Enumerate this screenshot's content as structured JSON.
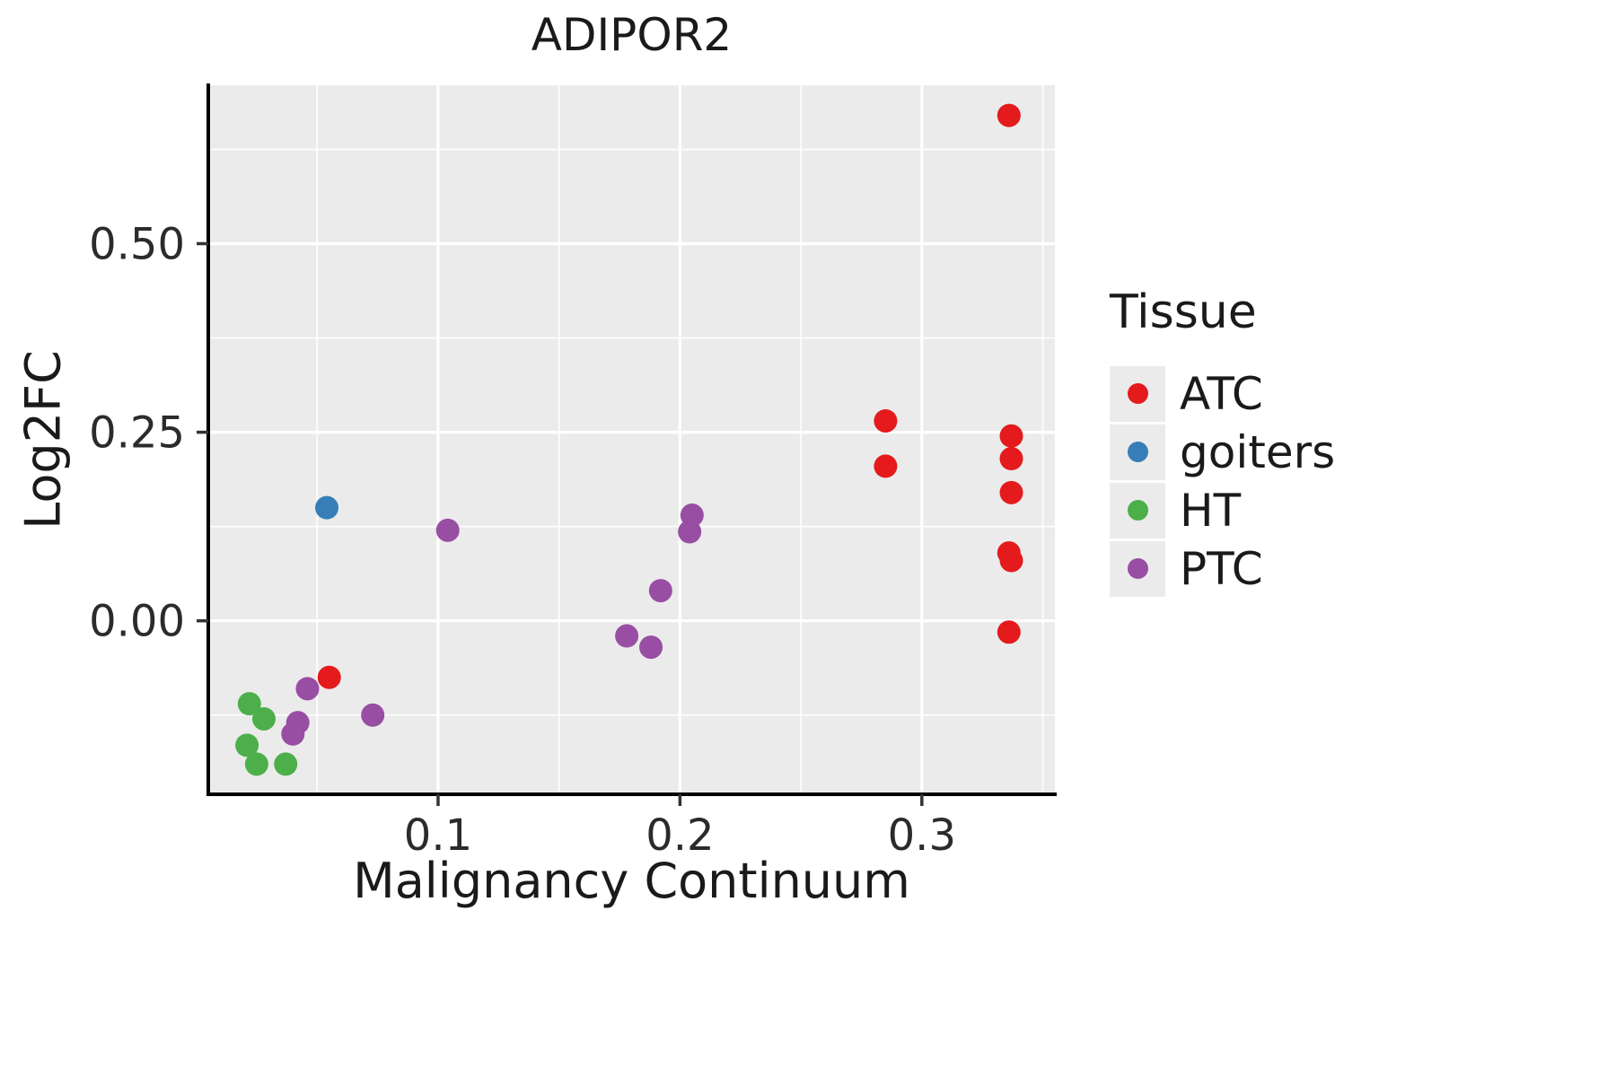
{
  "title": "ADIPOR2",
  "xlabel": "Malignancy Continuum",
  "ylabel": "Log2FC",
  "legend": {
    "title": "Tissue",
    "items": [
      {
        "label": "ATC",
        "color": "#e41a1c"
      },
      {
        "label": "goiters",
        "color": "#377eb8"
      },
      {
        "label": "HT",
        "color": "#4daf4a"
      },
      {
        "label": "PTC",
        "color": "#984ea3"
      }
    ]
  },
  "colors": {
    "panel_background": "#ebebeb",
    "grid": "#ffffff",
    "axis_line": "#000000",
    "tick_text": "#2b2b2b"
  },
  "chart_data": {
    "type": "scatter",
    "title": "ADIPOR2",
    "xlabel": "Malignancy Continuum",
    "ylabel": "Log2FC",
    "xlim": [
      0.005,
      0.355
    ],
    "ylim": [
      -0.23,
      0.71
    ],
    "x_ticks": [
      0.1,
      0.2,
      0.3
    ],
    "x_tick_labels": [
      "0.1",
      "0.2",
      "0.3"
    ],
    "y_ticks": [
      0.0,
      0.25,
      0.5
    ],
    "y_tick_labels": [
      "0.00",
      "0.25",
      "0.50"
    ],
    "x_minor": [
      0.05,
      0.15,
      0.25,
      0.35
    ],
    "y_minor": [
      -0.125,
      0.125,
      0.375,
      0.625
    ],
    "grid": true,
    "legend_position": "right",
    "series": [
      {
        "name": "ATC",
        "color": "#e41a1c",
        "points": [
          [
            0.336,
            0.67
          ],
          [
            0.285,
            0.265
          ],
          [
            0.285,
            0.205
          ],
          [
            0.337,
            0.245
          ],
          [
            0.337,
            0.215
          ],
          [
            0.337,
            0.17
          ],
          [
            0.336,
            0.09
          ],
          [
            0.337,
            0.08
          ],
          [
            0.336,
            -0.015
          ],
          [
            0.055,
            -0.075
          ]
        ]
      },
      {
        "name": "goiters",
        "color": "#377eb8",
        "points": [
          [
            0.054,
            0.15
          ]
        ]
      },
      {
        "name": "HT",
        "color": "#4daf4a",
        "points": [
          [
            0.022,
            -0.11
          ],
          [
            0.028,
            -0.13
          ],
          [
            0.021,
            -0.165
          ],
          [
            0.025,
            -0.19
          ],
          [
            0.037,
            -0.19
          ]
        ]
      },
      {
        "name": "PTC",
        "color": "#984ea3",
        "points": [
          [
            0.046,
            -0.09
          ],
          [
            0.042,
            -0.135
          ],
          [
            0.04,
            -0.15
          ],
          [
            0.073,
            -0.125
          ],
          [
            0.104,
            0.12
          ],
          [
            0.178,
            -0.02
          ],
          [
            0.188,
            -0.035
          ],
          [
            0.192,
            0.04
          ],
          [
            0.204,
            0.118
          ],
          [
            0.205,
            0.14
          ]
        ]
      }
    ]
  }
}
